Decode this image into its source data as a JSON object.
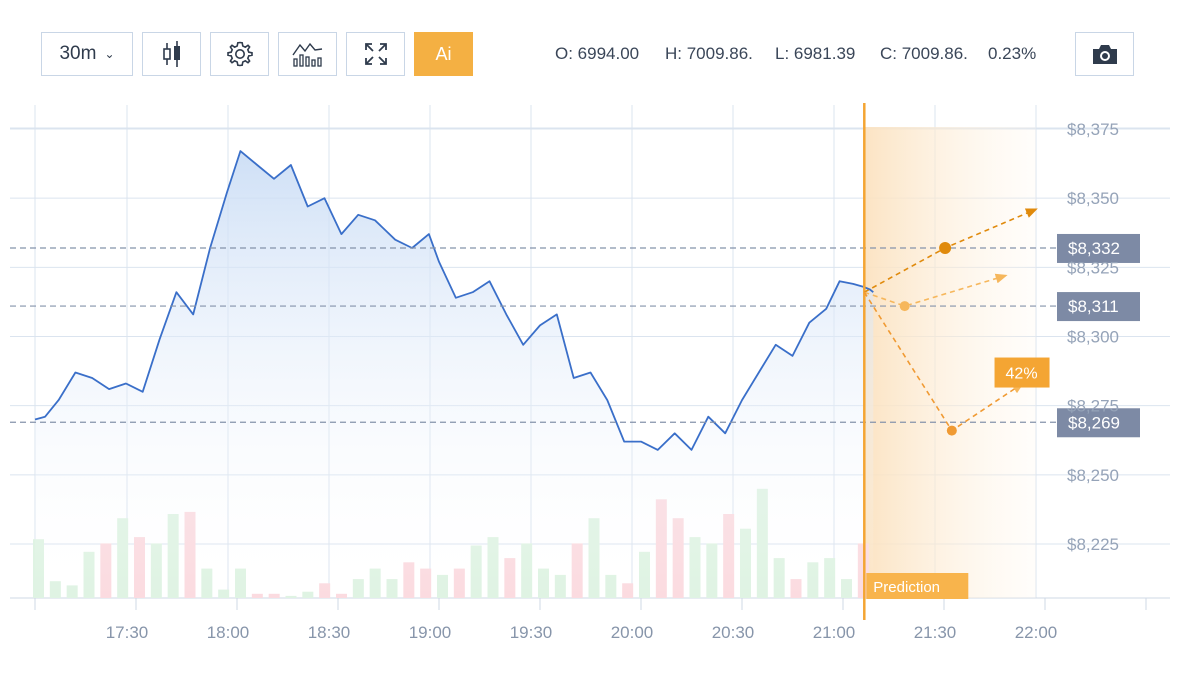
{
  "toolbar": {
    "interval": "30m",
    "ai_label": "Ai",
    "ohlc": {
      "open": "O: 6994.00",
      "high": "H: 7009.86.",
      "low": "L: 6981.39",
      "close": "C: 7009.86.",
      "change": "0.23%"
    },
    "icons": [
      "candlestick-icon",
      "gear-icon",
      "indicators-icon",
      "fullscreen-icon",
      "camera-icon"
    ]
  },
  "colors": {
    "line": "#3a6fc9",
    "area_top": "#cfe0f7",
    "volume_up": "#dff3e3",
    "volume_down": "#fbdbe0",
    "prediction": "#f4a533",
    "prediction_dark": "#e08a0c",
    "price_tag": "#7d8aa5",
    "grid": "#dbe4ef"
  },
  "chart_data": {
    "type": "line",
    "x_ticks": [
      "17:30",
      "18:00",
      "18:30",
      "19:00",
      "19:30",
      "20:00",
      "20:30",
      "21:00",
      "21:30",
      "22:00"
    ],
    "y_ticks": [
      "$8,375",
      "$8,350",
      "$8,325",
      "$8,300",
      "$8,275",
      "$8,250",
      "$8,225"
    ],
    "ylim": [
      8205,
      8380
    ],
    "series": [
      {
        "x": [
          "17:00",
          "17:03",
          "17:07",
          "17:12",
          "17:17",
          "17:22",
          "17:27",
          "17:32",
          "17:37",
          "17:42",
          "17:47",
          "17:52",
          "17:57",
          "18:01",
          "18:06",
          "18:11",
          "18:16",
          "18:21",
          "18:26",
          "18:31",
          "18:36",
          "18:41",
          "18:47",
          "18:52",
          "18:57",
          "19:00",
          "19:05",
          "19:10",
          "19:15",
          "19:20",
          "19:25",
          "19:30",
          "19:35",
          "19:40",
          "19:45",
          "19:50",
          "19:55",
          "20:00",
          "20:05",
          "20:10",
          "20:15",
          "20:20",
          "20:25",
          "20:30",
          "20:35",
          "20:40",
          "20:45",
          "20:50",
          "20:55",
          "20:59",
          "21:03",
          "21:06",
          "21:08",
          "21:09"
        ],
        "values": [
          8270,
          8271,
          8277,
          8287,
          8285,
          8281,
          8283,
          8280,
          8299,
          8316,
          8308,
          8332,
          8352,
          8367,
          8362,
          8357,
          8362,
          8347,
          8350,
          8337,
          8344,
          8342,
          8335,
          8332,
          8337,
          8327,
          8314,
          8316,
          8320,
          8308,
          8297,
          8304,
          8308,
          8285,
          8287,
          8277,
          8262,
          8262,
          8259,
          8265,
          8259,
          8271,
          8265,
          8277,
          8287,
          8297,
          8293,
          8305,
          8310,
          8320,
          8319,
          8318,
          8317,
          8316
        ]
      }
    ],
    "volume": [
      {
        "x": "17:00",
        "v": 28,
        "dir": "up"
      },
      {
        "x": "17:05",
        "v": 8,
        "dir": "up"
      },
      {
        "x": "17:10",
        "v": 6,
        "dir": "up"
      },
      {
        "x": "17:15",
        "v": 22,
        "dir": "up"
      },
      {
        "x": "17:20",
        "v": 26,
        "dir": "down"
      },
      {
        "x": "17:25",
        "v": 38,
        "dir": "up"
      },
      {
        "x": "17:30",
        "v": 29,
        "dir": "down"
      },
      {
        "x": "17:35",
        "v": 26,
        "dir": "up"
      },
      {
        "x": "17:40",
        "v": 40,
        "dir": "up"
      },
      {
        "x": "17:45",
        "v": 41,
        "dir": "down"
      },
      {
        "x": "17:50",
        "v": 14,
        "dir": "up"
      },
      {
        "x": "17:55",
        "v": 4,
        "dir": "up"
      },
      {
        "x": "18:00",
        "v": 14,
        "dir": "up"
      },
      {
        "x": "18:05",
        "v": 2,
        "dir": "down"
      },
      {
        "x": "18:10",
        "v": 2,
        "dir": "down"
      },
      {
        "x": "18:15",
        "v": 1,
        "dir": "up"
      },
      {
        "x": "18:20",
        "v": 3,
        "dir": "up"
      },
      {
        "x": "18:25",
        "v": 7,
        "dir": "down"
      },
      {
        "x": "18:30",
        "v": 2,
        "dir": "down"
      },
      {
        "x": "18:35",
        "v": 9,
        "dir": "up"
      },
      {
        "x": "18:40",
        "v": 14,
        "dir": "up"
      },
      {
        "x": "18:45",
        "v": 9,
        "dir": "up"
      },
      {
        "x": "18:50",
        "v": 17,
        "dir": "down"
      },
      {
        "x": "18:55",
        "v": 14,
        "dir": "down"
      },
      {
        "x": "19:00",
        "v": 11,
        "dir": "up"
      },
      {
        "x": "19:05",
        "v": 14,
        "dir": "down"
      },
      {
        "x": "19:10",
        "v": 25,
        "dir": "up"
      },
      {
        "x": "19:15",
        "v": 29,
        "dir": "up"
      },
      {
        "x": "19:20",
        "v": 19,
        "dir": "down"
      },
      {
        "x": "19:25",
        "v": 26,
        "dir": "up"
      },
      {
        "x": "19:30",
        "v": 14,
        "dir": "up"
      },
      {
        "x": "19:35",
        "v": 11,
        "dir": "up"
      },
      {
        "x": "19:40",
        "v": 26,
        "dir": "down"
      },
      {
        "x": "19:45",
        "v": 38,
        "dir": "up"
      },
      {
        "x": "19:50",
        "v": 11,
        "dir": "up"
      },
      {
        "x": "19:55",
        "v": 7,
        "dir": "down"
      },
      {
        "x": "20:00",
        "v": 22,
        "dir": "up"
      },
      {
        "x": "20:05",
        "v": 47,
        "dir": "down"
      },
      {
        "x": "20:10",
        "v": 38,
        "dir": "down"
      },
      {
        "x": "20:15",
        "v": 29,
        "dir": "up"
      },
      {
        "x": "20:20",
        "v": 26,
        "dir": "up"
      },
      {
        "x": "20:25",
        "v": 40,
        "dir": "down"
      },
      {
        "x": "20:30",
        "v": 33,
        "dir": "up"
      },
      {
        "x": "20:35",
        "v": 52,
        "dir": "up"
      },
      {
        "x": "20:40",
        "v": 19,
        "dir": "up"
      },
      {
        "x": "20:45",
        "v": 9,
        "dir": "down"
      },
      {
        "x": "20:50",
        "v": 17,
        "dir": "up"
      },
      {
        "x": "20:55",
        "v": 19,
        "dir": "up"
      },
      {
        "x": "21:00",
        "v": 9,
        "dir": "up"
      },
      {
        "x": "21:05",
        "v": 26,
        "dir": "down"
      }
    ],
    "levels": [
      {
        "label": "$8,332",
        "value": 8332
      },
      {
        "label": "$8,311",
        "value": 8311
      },
      {
        "label": "$8,269",
        "value": 8269
      }
    ],
    "prediction": {
      "label": "Prediction",
      "start": {
        "x": "21:09",
        "y": 8316
      },
      "end_time": "22:00",
      "paths": [
        {
          "name": "high",
          "dot": {
            "x": "21:33",
            "y": 8332
          },
          "arrow_end": {
            "x": "22:00",
            "y": 8346
          }
        },
        {
          "name": "mid",
          "dot": {
            "x": "21:21",
            "y": 8311
          },
          "arrow_end": {
            "x": "21:51",
            "y": 8322
          }
        },
        {
          "name": "low",
          "dot": {
            "x": "21:35",
            "y": 8266
          },
          "arrow_end": {
            "x": "21:56",
            "y": 8283
          }
        }
      ],
      "probability_label": "42%"
    },
    "grid": true
  }
}
